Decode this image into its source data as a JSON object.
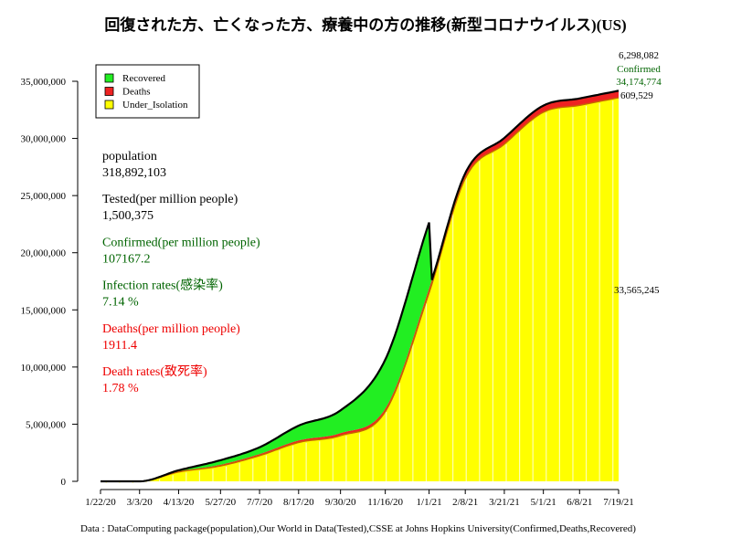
{
  "chart_data": {
    "type": "area",
    "title": "回復された方、亡くなった方、療養中の方の推移(新型コロナウイルス)(US)",
    "caption": "Data : DataComputing package(population),Our World in Data(Tested),CSSE at Johns Hopkins University(Confirmed,Deaths,Recovered)",
    "x_ticks": [
      "1/22/20",
      "3/3/20",
      "4/13/20",
      "5/27/20",
      "7/7/20",
      "8/17/20",
      "9/30/20",
      "11/16/20",
      "1/1/21",
      "2/8/21",
      "3/21/21",
      "5/1/21",
      "6/8/21",
      "7/19/21"
    ],
    "y_ticks": [
      "0",
      "5,000,000",
      "10,000,000",
      "15,000,000",
      "20,000,000",
      "25,000,000",
      "30,000,000",
      "35,000,000"
    ],
    "ylim": [
      0,
      35000000
    ],
    "legend": {
      "position": "top-left",
      "entries": [
        {
          "label": "Recovered",
          "color": "#22ee22"
        },
        {
          "label": "Deaths",
          "color": "#ee2222"
        },
        {
          "label": "Under_Isolation",
          "color": "#ffff00"
        }
      ]
    },
    "x_index": [
      0,
      41,
      82,
      126,
      167,
      208,
      252,
      299,
      345,
      383,
      424,
      465,
      503,
      544
    ],
    "series": [
      {
        "name": "Under_Isolation",
        "values": [
          0,
          0,
          820000,
          1350000,
          2250000,
          3400000,
          4000000,
          6100000,
          16500000,
          26500000,
          29500000,
          32300000,
          32900000,
          33565245
        ]
      },
      {
        "name": "Deaths",
        "values": [
          0,
          0,
          25000,
          98000,
          130000,
          170000,
          208000,
          250000,
          350000,
          460000,
          540000,
          575000,
          600000,
          609529
        ]
      },
      {
        "name": "Recovered",
        "values": [
          0,
          0,
          120000,
          400000,
          600000,
          1300000,
          2000000,
          4300000,
          5800000,
          0,
          0,
          0,
          0,
          0
        ]
      }
    ],
    "series_colors": {
      "Recovered": "#22ee22",
      "Deaths": "#ee2222",
      "Under_Isolation": "#ffff00",
      "outline": "#000000",
      "deaths_line": "#c86400"
    },
    "recovered_end_index": 345,
    "annotations": {
      "recovered_total": "6,298,082",
      "confirmed_label": "Confirmed",
      "confirmed_total": "34,174,774",
      "deaths_total": "609,529",
      "isolation_total": "33,565,245"
    },
    "stats": [
      {
        "label": "population",
        "value": "318,892,103",
        "color": "#000000"
      },
      {
        "label": "Tested(per million people)",
        "value": "1,500,375",
        "color": "#000000"
      },
      {
        "label": "Confirmed(per million people)",
        "value": "107167.2",
        "color": "#006400"
      },
      {
        "label": "Infection rates(感染率)",
        "value": "7.14 %",
        "color": "#006400"
      },
      {
        "label": "Deaths(per million people)",
        "value": "1911.4",
        "color": "#ee0000"
      },
      {
        "label": "Death rates(致死率)",
        "value": "1.78 %",
        "color": "#ee0000"
      }
    ]
  }
}
